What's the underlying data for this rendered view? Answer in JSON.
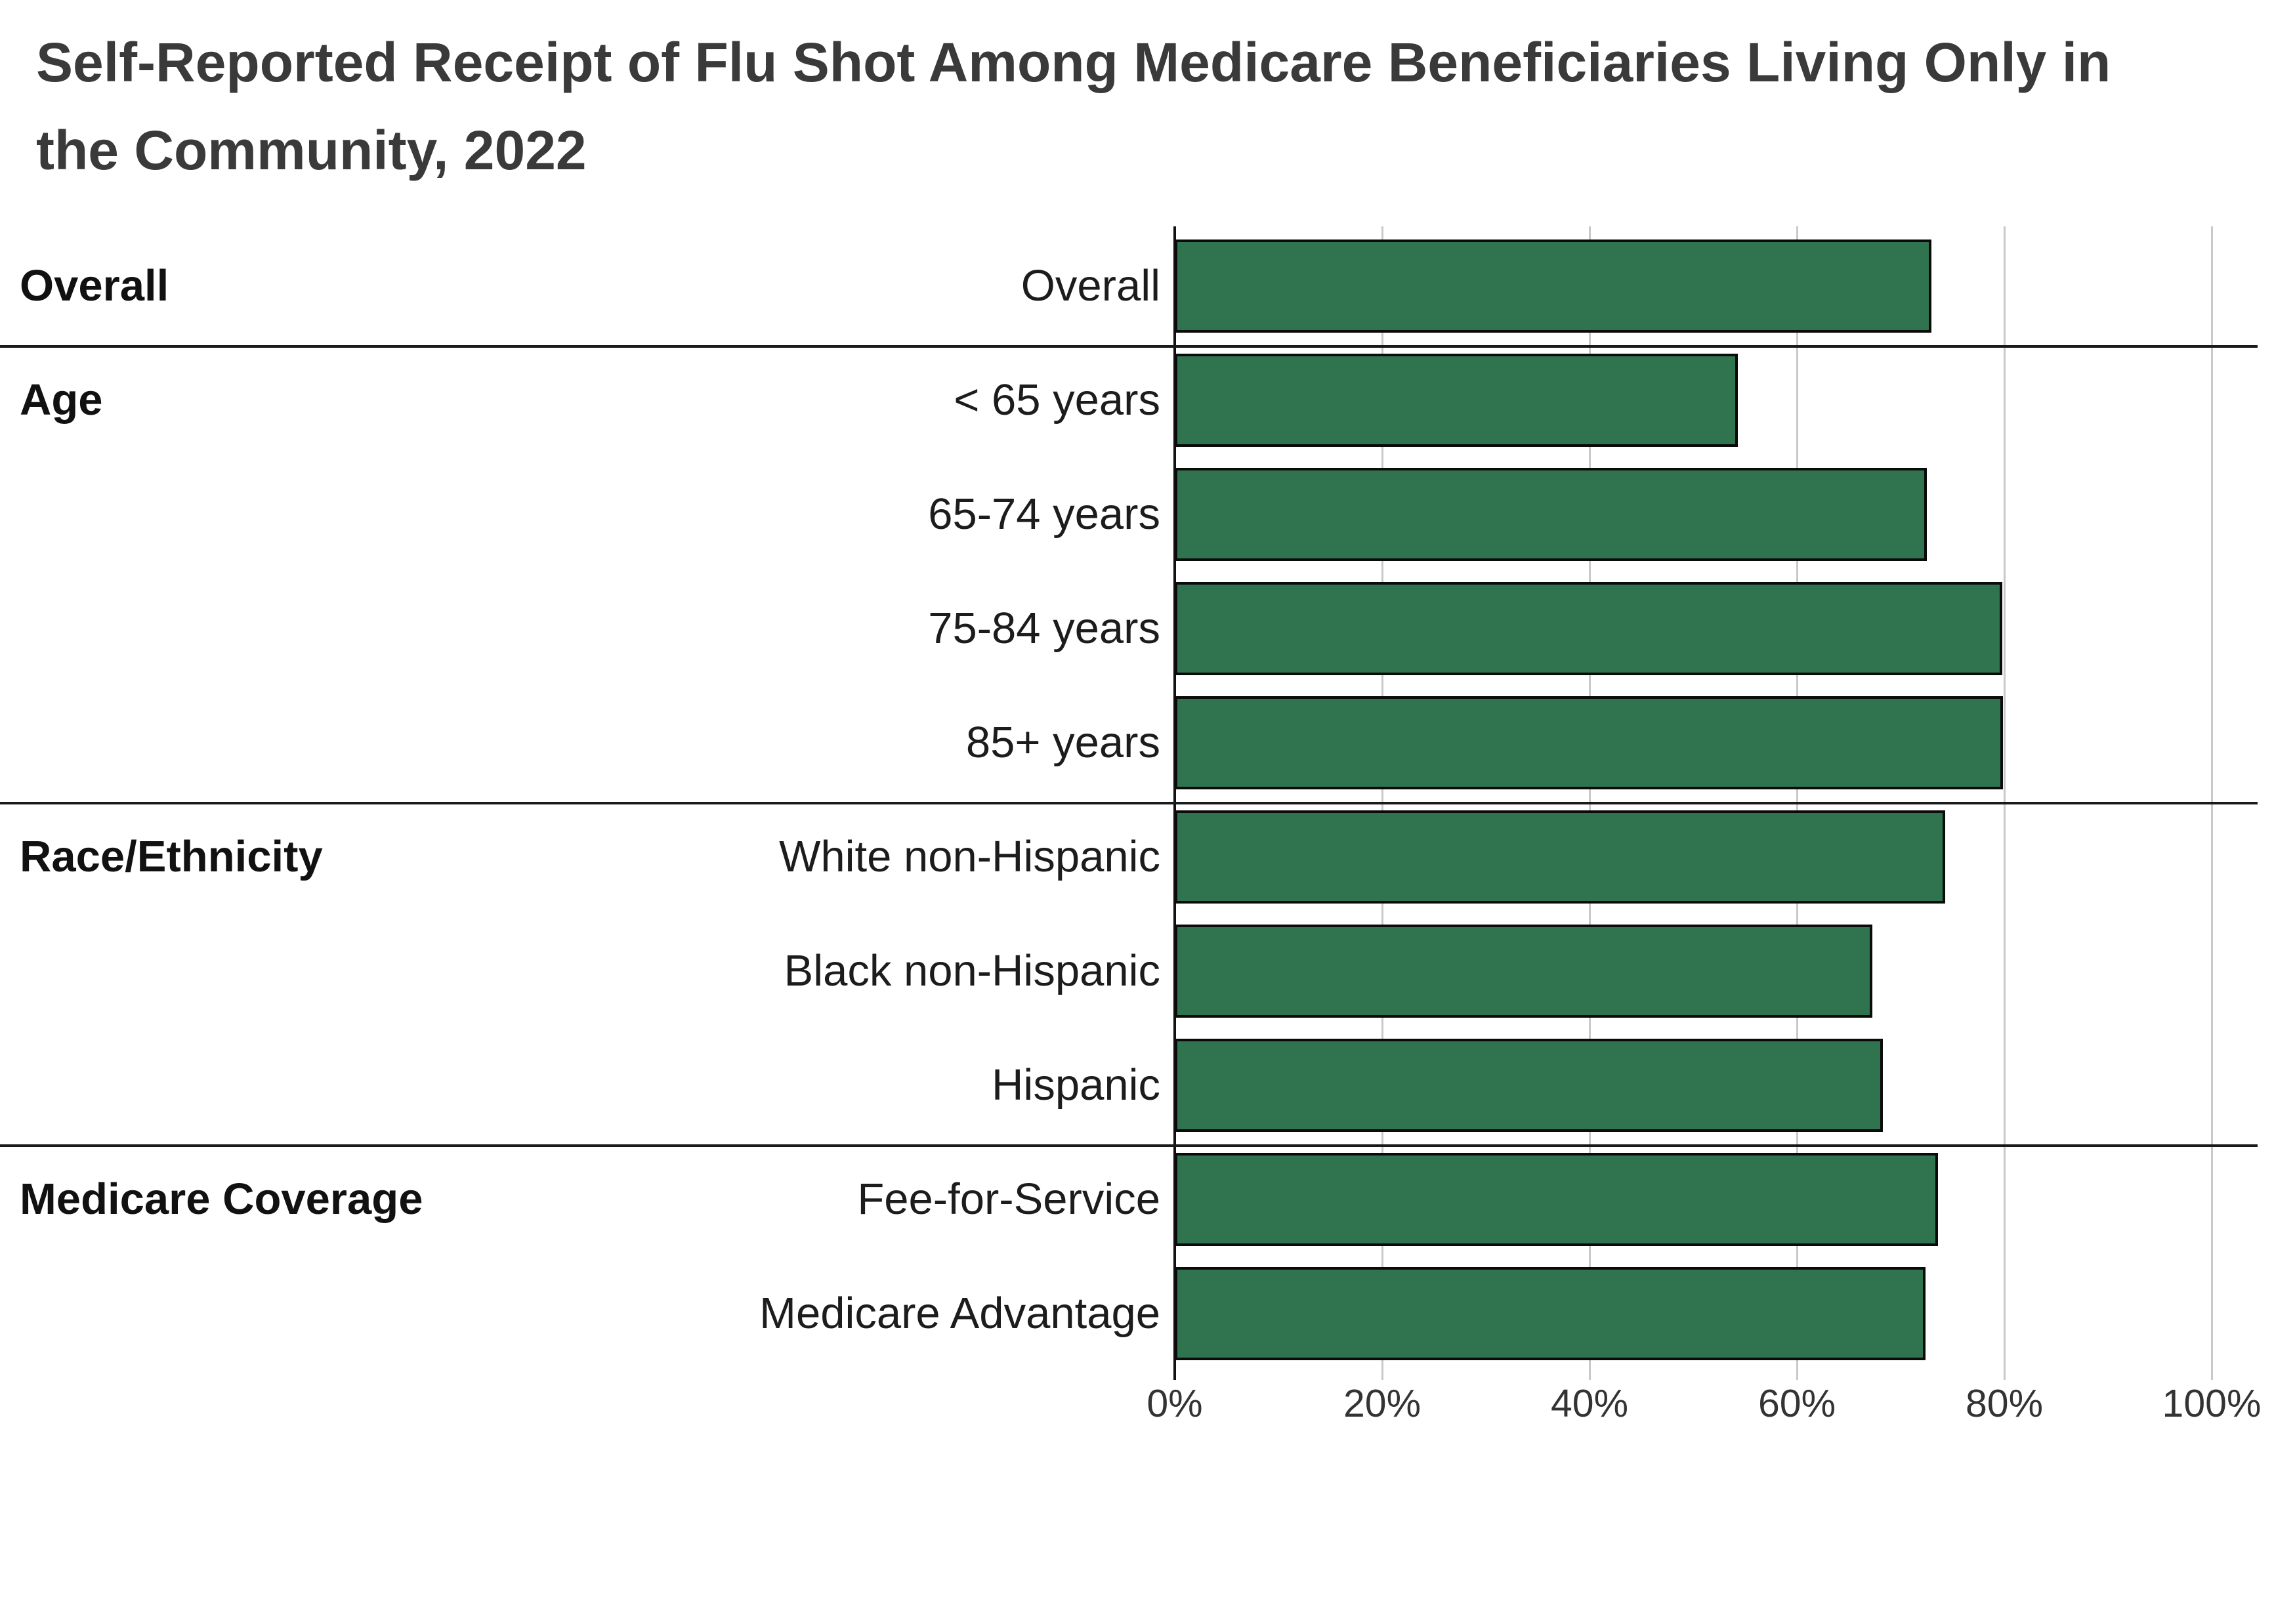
{
  "title": "Self-Reported Receipt of Flu Shot Among Medicare Beneficiaries Living Only in the Community, 2022",
  "colors": {
    "bar_fill": "#2F744E",
    "bar_border": "#0b0b0b",
    "gridline": "#c9c9c9",
    "axis_line": "#111111",
    "separator": "#1a1a1a",
    "title_text": "#3a3a3a",
    "label_text": "#1c1c1c",
    "tick_text": "#333333",
    "background": "#ffffff"
  },
  "chart_data": {
    "type": "bar",
    "orientation": "horizontal",
    "title": "Self-Reported Receipt of Flu Shot Among Medicare Beneficiaries Living Only in the Community, 2022",
    "xlabel": "",
    "ylabel": "",
    "unit": "%",
    "xlim": [
      0,
      100
    ],
    "grid": true,
    "legend": "none",
    "x_ticks": [
      {
        "value": 0,
        "label": "0%"
      },
      {
        "value": 20,
        "label": "20%"
      },
      {
        "value": 40,
        "label": "40%"
      },
      {
        "value": 60,
        "label": "60%"
      },
      {
        "value": 80,
        "label": "80%"
      },
      {
        "value": 100,
        "label": "100%"
      }
    ],
    "groups": [
      {
        "label": "Overall",
        "rows": [
          {
            "label": "Overall",
            "value": 73.0
          }
        ]
      },
      {
        "label": "Age",
        "rows": [
          {
            "label": "< 65 years",
            "value": 54.3
          },
          {
            "label": "65-74 years",
            "value": 72.5
          },
          {
            "label": "75-84 years",
            "value": 79.8
          },
          {
            "label": "85+ years",
            "value": 79.9
          }
        ]
      },
      {
        "label": "Race/Ethnicity",
        "rows": [
          {
            "label": "White non-Hispanic",
            "value": 74.3
          },
          {
            "label": "Black non-Hispanic",
            "value": 67.3
          },
          {
            "label": "Hispanic",
            "value": 68.3
          }
        ]
      },
      {
        "label": "Medicare Coverage",
        "rows": [
          {
            "label": "Fee-for-Service",
            "value": 73.6
          },
          {
            "label": "Medicare Advantage",
            "value": 72.4
          }
        ]
      }
    ]
  }
}
